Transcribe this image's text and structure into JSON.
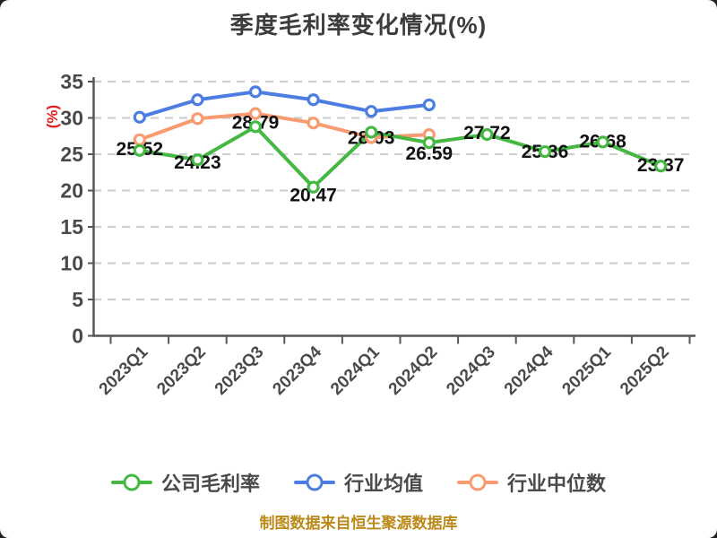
{
  "chart": {
    "title": "季度毛利率变化情况(%)",
    "y_axis_name": "(%)",
    "y_axis_name_color": "#e02020",
    "source_note": "制图数据来自恒生聚源数据库",
    "source_note_color": "#bb8a18"
  },
  "chart_data": {
    "type": "line",
    "title": "季度毛利率变化情况(%)",
    "ylabel": "(%)",
    "categories": [
      "2023Q1",
      "2023Q2",
      "2023Q3",
      "2023Q4",
      "2024Q1",
      "2024Q2",
      "2024Q3",
      "2024Q4",
      "2025Q1",
      "2025Q2"
    ],
    "series": [
      {
        "id": "company-gross-margin",
        "name": "公司毛利率",
        "color": "#44b843",
        "values": [
          25.52,
          24.23,
          28.79,
          20.47,
          28.03,
          26.59,
          27.72,
          25.36,
          26.68,
          23.37
        ],
        "data_labels": [
          "25.52",
          "24.23",
          "28.79",
          "20.47",
          "28.03",
          "26.59",
          "27.72",
          "25.36",
          "26.68",
          "23.37"
        ]
      },
      {
        "id": "industry-average",
        "name": "行业均值",
        "color": "#4c7de2",
        "values": [
          30.1,
          32.5,
          33.6,
          32.5,
          30.9,
          31.8
        ],
        "estimated": true
      },
      {
        "id": "industry-median",
        "name": "行业中位数",
        "color": "#f99b70",
        "values": [
          27.0,
          29.9,
          30.6,
          29.3,
          27.3,
          27.7
        ],
        "estimated": true
      }
    ],
    "ylim": [
      0,
      35
    ],
    "yticks": [
      0,
      5,
      10,
      15,
      20,
      25,
      30,
      35
    ],
    "grid": "horizontal-dashed",
    "grid_color": "#cfcfcf",
    "axis_color": "#55565a",
    "tick_label_color": "#4a4a4c",
    "value_label_color": "#111111",
    "x_label_rotation": 45,
    "legend_position": "bottom",
    "layout_hints": {
      "label_dy": [
        5,
        10,
        2,
        16,
        13,
        19,
        5,
        7,
        6,
        6
      ],
      "draw_order": [
        1,
        2,
        0
      ]
    }
  }
}
